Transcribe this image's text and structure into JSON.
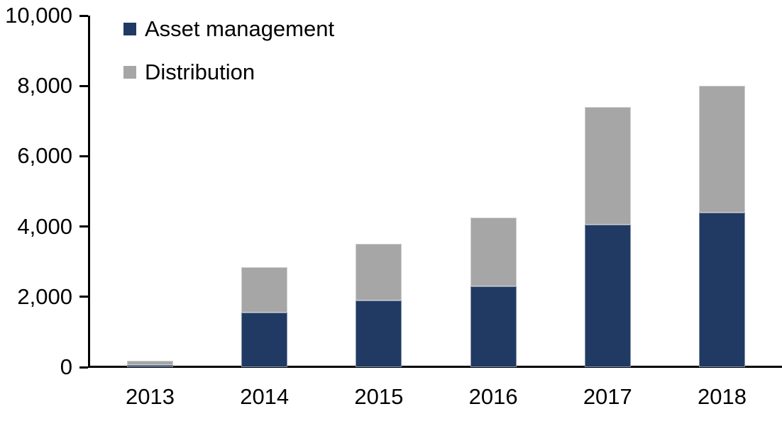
{
  "chart_data": {
    "type": "bar",
    "stacked": true,
    "title": "",
    "xlabel": "",
    "ylabel": "",
    "categories": [
      "2013",
      "2014",
      "2015",
      "2016",
      "2017",
      "2018"
    ],
    "series": [
      {
        "name": "Asset management",
        "color": "#203A63",
        "values": [
          70,
          1550,
          1900,
          2300,
          4050,
          4400
        ]
      },
      {
        "name": "Distribution",
        "color": "#A6A6A6",
        "values": [
          110,
          1300,
          1600,
          1950,
          3350,
          3600
        ]
      }
    ],
    "totals": [
      180,
      2850,
      3500,
      4250,
      7400,
      8000
    ],
    "ylim": [
      0,
      10000
    ],
    "yticks": [
      0,
      2000,
      4000,
      6000,
      8000,
      10000
    ],
    "ytick_labels": [
      "0",
      "2,000",
      "4,000",
      "6,000",
      "8,000",
      "10,000"
    ],
    "grid": false,
    "legend_position": "top-left-inside",
    "axis_color": "#000000",
    "text_color": "#000000",
    "background": "#FFFFFF"
  }
}
